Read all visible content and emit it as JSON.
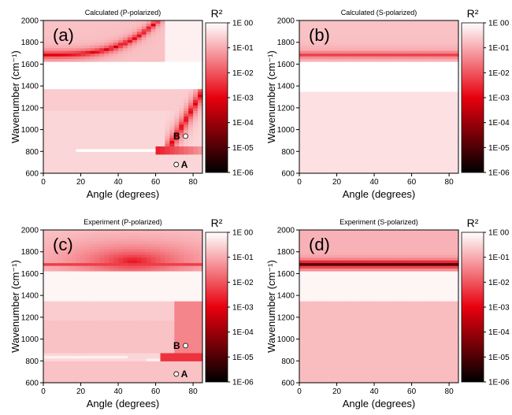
{
  "figure": {
    "colors": {
      "high": "#ffffff",
      "mid": "#e8000e",
      "low": "#000000",
      "marker_fill": "#ffffff",
      "marker_stroke": "#000000"
    }
  },
  "chart_data": [
    {
      "type": "heatmap",
      "title": "Calculated (P-polarized)",
      "panel_label": "(a)",
      "xlabel": "Angle (degrees)",
      "ylabel": "Wavenumber (cm⁻¹)",
      "xlim": [
        0,
        85
      ],
      "ylim": [
        600,
        2000
      ],
      "xticks": [
        0,
        20,
        40,
        60,
        80
      ],
      "yticks": [
        600,
        800,
        1000,
        1200,
        1400,
        1600,
        1800,
        2000
      ],
      "colorbar": {
        "title": "R²",
        "scale": "log",
        "range": [
          1e-06,
          1
        ],
        "ticks": [
          "1E 00",
          "1E-01",
          "1E-02",
          "1E-03",
          "1E-04",
          "1E-05",
          "1E-06"
        ]
      },
      "markers": [
        {
          "label": "B",
          "x": 76,
          "y": 940
        },
        {
          "label": "A",
          "x": 71,
          "y": 680
        }
      ]
    },
    {
      "type": "heatmap",
      "title": "Calculated (S-polarized)",
      "panel_label": "(b)",
      "xlabel": "Angle (degrees)",
      "ylabel": "Wavenumber (cm⁻¹)",
      "xlim": [
        0,
        85
      ],
      "ylim": [
        600,
        2000
      ],
      "xticks": [
        0,
        20,
        40,
        60,
        80
      ],
      "yticks": [
        600,
        800,
        1000,
        1200,
        1400,
        1600,
        1800,
        2000
      ],
      "colorbar": {
        "title": "R²",
        "scale": "log",
        "range": [
          1e-06,
          1
        ],
        "ticks": [
          "1E 00",
          "1E-01",
          "1E-02",
          "1E-03",
          "1E-04",
          "1E-05",
          "1E-06"
        ]
      },
      "markers": []
    },
    {
      "type": "heatmap",
      "title": "Experiment (P-polarized)",
      "panel_label": "(c)",
      "xlabel": "Angle (degrees)",
      "ylabel": "Wavenumber (cm⁻¹)",
      "xlim": [
        0,
        85
      ],
      "ylim": [
        600,
        2000
      ],
      "xticks": [
        0,
        20,
        40,
        60,
        80
      ],
      "yticks": [
        600,
        800,
        1000,
        1200,
        1400,
        1600,
        1800,
        2000
      ],
      "colorbar": {
        "title": "R²",
        "scale": "log",
        "range": [
          1e-06,
          1
        ],
        "ticks": [
          "1E 00",
          "1E-01",
          "1E-02",
          "1E-03",
          "1E-04",
          "1E-05",
          "1E-06"
        ]
      },
      "markers": [
        {
          "label": "B",
          "x": 76,
          "y": 940
        },
        {
          "label": "A",
          "x": 71,
          "y": 680
        }
      ]
    },
    {
      "type": "heatmap",
      "title": "Experiment (S-polarized)",
      "panel_label": "(d)",
      "xlabel": "Angle (degrees)",
      "ylabel": "Wavenumber (cm⁻¹)",
      "xlim": [
        0,
        85
      ],
      "ylim": [
        600,
        2000
      ],
      "xticks": [
        0,
        20,
        40,
        60,
        80
      ],
      "yticks": [
        600,
        800,
        1000,
        1200,
        1400,
        1600,
        1800,
        2000
      ],
      "colorbar": {
        "title": "R²",
        "scale": "log",
        "range": [
          1e-06,
          1
        ],
        "ticks": [
          "1E 00",
          "1E-01",
          "1E-02",
          "1E-03",
          "1E-04",
          "1E-05",
          "1E-06"
        ]
      },
      "markers": []
    }
  ]
}
